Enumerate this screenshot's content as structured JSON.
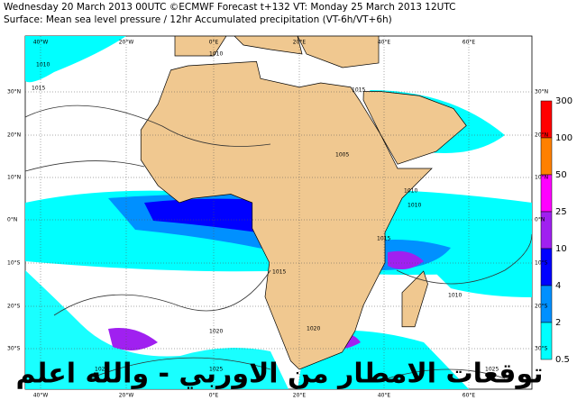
{
  "header": {
    "line1": "Wednesday 20 March 2013 00UTC ©ECMWF Forecast t+132 VT: Monday 25 March 2013 12UTC",
    "line2": "Surface: Mean sea level pressure / 12hr Accumulated precipitation (VT-6h/VT+6h)"
  },
  "map": {
    "longitude_labels": [
      "40°W",
      "20°W",
      "0°E",
      "20°E",
      "40°E",
      "60°E"
    ],
    "latitude_labels": [
      "30°N",
      "20°N",
      "10°N",
      "0°N",
      "10°S",
      "20°S",
      "30°S"
    ],
    "isobar_labels": [
      "1010",
      "1010",
      "1015",
      "1020",
      "1015",
      "1005",
      "1010",
      "1010",
      "1015",
      "1010",
      "1015",
      "1020",
      "1020",
      "1025",
      "1025"
    ]
  },
  "legend": {
    "labels": [
      300,
      100,
      50,
      25,
      10,
      4,
      2,
      0.5
    ],
    "colors": [
      "#ff0000",
      "#ff8000",
      "#ff00ff",
      "#a020f0",
      "#0000ff",
      "#0090ff",
      "#00ffff"
    ]
  },
  "overlay_text": "توقعات الامطار من الاوربي - والله اعلم"
}
